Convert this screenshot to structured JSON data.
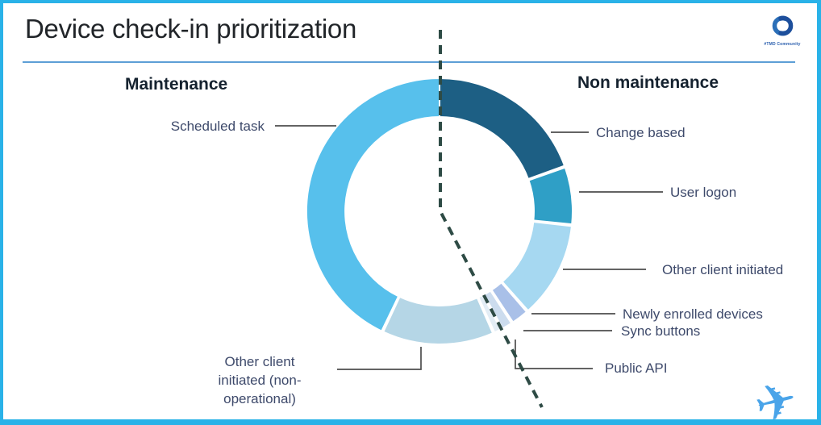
{
  "title": "Device check-in prioritization",
  "logo": {
    "text": "#TMD Community"
  },
  "sections": {
    "maintenance": "Maintenance",
    "non_maintenance": "Non maintenance"
  },
  "icons": {
    "airplane": "✈",
    "community_logo": "interlocked-swirl"
  },
  "colors": {
    "frame": "#29b2e8",
    "title_rule": "#5d9fd6",
    "divider_dash": "#2e4b45",
    "leader_line": "#4d4d4d",
    "label_text": "#3e4a6b",
    "heading_text": "#15222f",
    "title_text": "#212529",
    "airplane": "#4aa4e9",
    "logo_blue": "#2b6fb8",
    "logo_navy": "#1d4f9c"
  },
  "chart_data": {
    "type": "pie",
    "donut": true,
    "title": "Device check-in prioritization",
    "legend_position": "callouts",
    "divider": "dashed line splits Maintenance (left) from Non maintenance (right)",
    "groups": [
      {
        "name": "Maintenance",
        "segments": [
          "Scheduled task",
          "Other client initiated (non-operational)"
        ]
      },
      {
        "name": "Non maintenance",
        "segments": [
          "Change based",
          "User logon",
          "Other client initiated",
          "Newly enrolled devices",
          "Sync buttons",
          "Public API"
        ]
      }
    ],
    "segments": [
      {
        "label": "Change based",
        "group": "Non maintenance",
        "percent_est": 19.4,
        "start_deg": 0,
        "end_deg": 70,
        "color": "#1d5f84"
      },
      {
        "label": "User logon",
        "group": "Non maintenance",
        "percent_est": 7.1,
        "start_deg": 70.8,
        "end_deg": 95.6,
        "color": "#2f9fc6"
      },
      {
        "label": "Other client initiated",
        "group": "Non maintenance",
        "percent_est": 11.9,
        "start_deg": 96.4,
        "end_deg": 138.3,
        "color": "#a6d8f1"
      },
      {
        "label": "Newly enrolled devices",
        "group": "Non maintenance",
        "percent_est": 2.3,
        "start_deg": 139.1,
        "end_deg": 146.5,
        "color": "#a9c0e8"
      },
      {
        "label": "Sync buttons",
        "group": "Non maintenance",
        "percent_est": 1.2,
        "start_deg": 147.3,
        "end_deg": 151.8,
        "color": "#ccdcee"
      },
      {
        "label": "Public API",
        "group": "Non maintenance",
        "percent_est": 1.0,
        "start_deg": 152.6,
        "end_deg": 155.6,
        "color": "#e3edf5"
      },
      {
        "label": "Other client initiated (non-operational)",
        "group": "Maintenance",
        "percent_est": 13.8,
        "start_deg": 156.4,
        "end_deg": 205,
        "color": "#b5d6e6"
      },
      {
        "label": "Scheduled task",
        "group": "Maintenance",
        "percent_est": 43.1,
        "start_deg": 205.8,
        "end_deg": 360,
        "color": "#57c0ec"
      }
    ]
  }
}
